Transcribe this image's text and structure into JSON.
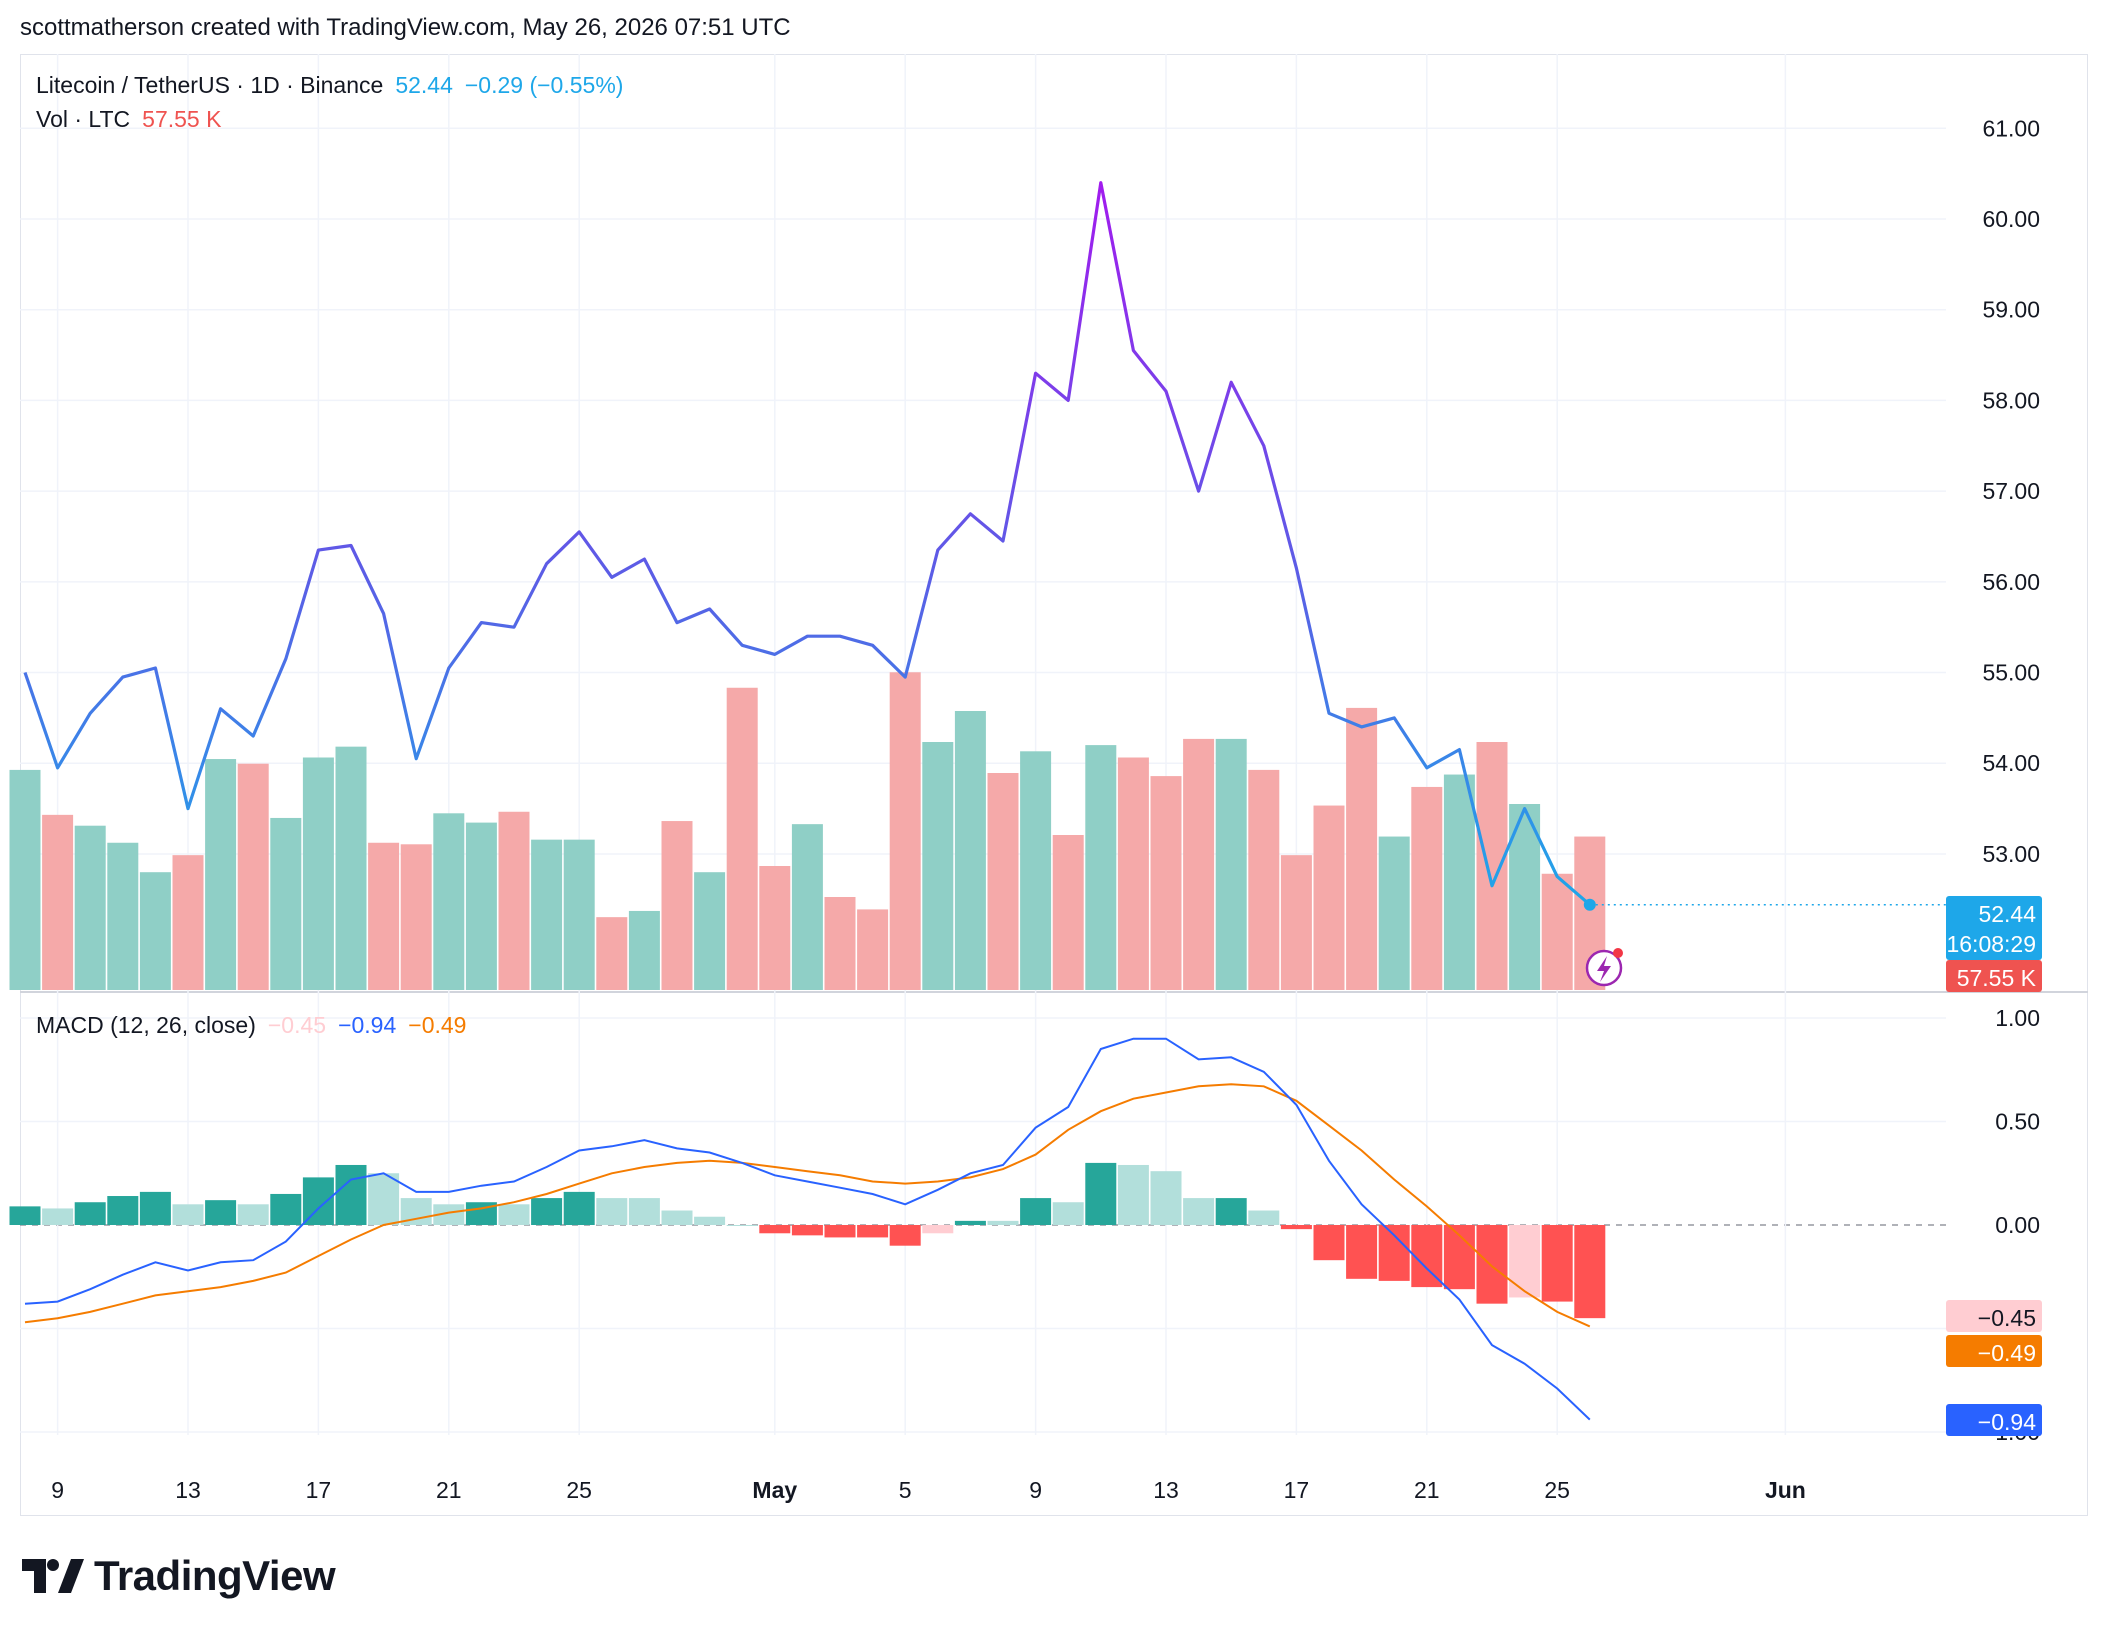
{
  "header": {
    "attribution": "scottmatherson created with TradingView.com, May 26, 2026 07:51 UTC"
  },
  "legend": {
    "symbol": "Litecoin / TetherUS · 1D · Binance",
    "last": "52.44",
    "change": "−0.29 (−0.55%)",
    "vol_label": "Vol · LTC",
    "vol_value": "57.55 K",
    "macd_label": "MACD (12, 26, close)",
    "macd_hist": "−0.45",
    "macd_line": "−0.94",
    "macd_signal": "−0.49"
  },
  "badges": {
    "price": "52.44",
    "countdown": "16:08:29",
    "volume": "57.55 K",
    "hist": "−0.45",
    "signal": "−0.49",
    "macd": "−0.94"
  },
  "colors": {
    "up_volume": "#8fcfc6",
    "down_volume": "#f5a9a9",
    "macd_line": "#2962ff",
    "signal_line": "#f57c00",
    "hist_up_strong": "#26a69a",
    "hist_up_weak": "#b2dfdb",
    "hist_down_strong": "#ff5252",
    "hist_down_weak": "#ffcdd2",
    "price_badge": "#1ea7e9",
    "volume_badge": "#ef5350"
  },
  "chart_data": {
    "type": "line",
    "x_dates": [
      "Apr 8",
      "Apr 9",
      "Apr 10",
      "Apr 11",
      "Apr 12",
      "Apr 13",
      "Apr 14",
      "Apr 15",
      "Apr 16",
      "Apr 17",
      "Apr 18",
      "Apr 19",
      "Apr 20",
      "Apr 21",
      "Apr 22",
      "Apr 23",
      "Apr 24",
      "Apr 25",
      "Apr 26",
      "Apr 27",
      "Apr 28",
      "Apr 29",
      "Apr 30",
      "May 1",
      "May 2",
      "May 3",
      "May 4",
      "May 5",
      "May 6",
      "May 7",
      "May 8",
      "May 9",
      "May 10",
      "May 11",
      "May 12",
      "May 13",
      "May 14",
      "May 15",
      "May 16",
      "May 17",
      "May 18",
      "May 19",
      "May 20",
      "May 21",
      "May 22",
      "May 23",
      "May 24",
      "May 25",
      "May 26"
    ],
    "price": [
      55.0,
      53.95,
      54.55,
      54.95,
      55.05,
      53.5,
      54.6,
      54.3,
      55.15,
      56.35,
      56.4,
      55.65,
      54.05,
      55.05,
      55.55,
      55.5,
      56.2,
      56.55,
      56.05,
      56.25,
      55.55,
      55.7,
      55.3,
      55.2,
      55.4,
      55.4,
      55.3,
      54.95,
      56.35,
      56.75,
      56.45,
      58.3,
      58.0,
      60.4,
      58.55,
      58.1,
      57.0,
      58.2,
      57.5,
      56.15,
      54.55,
      54.4,
      54.5,
      53.95,
      54.15,
      52.65,
      53.5,
      52.75,
      52.44
    ],
    "volume": [
      1.42,
      1.13,
      1.06,
      0.95,
      0.76,
      0.87,
      1.49,
      1.46,
      1.11,
      1.5,
      1.57,
      0.95,
      0.94,
      1.14,
      1.08,
      1.15,
      0.97,
      0.97,
      0.47,
      0.51,
      1.09,
      0.76,
      1.95,
      0.8,
      1.07,
      0.6,
      0.52,
      2.05,
      1.6,
      1.8,
      1.4,
      1.54,
      1.0,
      1.58,
      1.5,
      1.38,
      1.62,
      1.62,
      1.42,
      0.87,
      1.19,
      1.82,
      0.99,
      1.31,
      1.39,
      1.6,
      1.2,
      0.75,
      0.99
    ],
    "volume_up": [
      true,
      false,
      true,
      true,
      true,
      false,
      true,
      false,
      true,
      true,
      true,
      false,
      false,
      true,
      true,
      false,
      true,
      true,
      false,
      true,
      false,
      true,
      false,
      false,
      true,
      false,
      false,
      false,
      true,
      true,
      false,
      true,
      false,
      true,
      false,
      false,
      false,
      true,
      false,
      false,
      false,
      false,
      true,
      false,
      true,
      false,
      true,
      false,
      false
    ],
    "macd": [
      -0.38,
      -0.37,
      -0.31,
      -0.24,
      -0.18,
      -0.22,
      -0.18,
      -0.17,
      -0.08,
      0.08,
      0.22,
      0.25,
      0.16,
      0.16,
      0.19,
      0.21,
      0.28,
      0.36,
      0.38,
      0.41,
      0.37,
      0.35,
      0.3,
      0.24,
      0.21,
      0.18,
      0.15,
      0.1,
      0.17,
      0.25,
      0.29,
      0.47,
      0.57,
      0.85,
      0.9,
      0.9,
      0.8,
      0.81,
      0.74,
      0.58,
      0.31,
      0.1,
      -0.05,
      -0.21,
      -0.36,
      -0.58,
      -0.67,
      -0.79,
      -0.94
    ],
    "signal": [
      -0.47,
      -0.45,
      -0.42,
      -0.38,
      -0.34,
      -0.32,
      -0.3,
      -0.27,
      -0.23,
      -0.15,
      -0.07,
      0.0,
      0.03,
      0.06,
      0.08,
      0.11,
      0.15,
      0.2,
      0.25,
      0.28,
      0.3,
      0.31,
      0.3,
      0.28,
      0.26,
      0.24,
      0.21,
      0.2,
      0.21,
      0.23,
      0.27,
      0.34,
      0.46,
      0.55,
      0.61,
      0.64,
      0.67,
      0.68,
      0.67,
      0.6,
      0.48,
      0.36,
      0.22,
      0.09,
      -0.05,
      -0.2,
      -0.32,
      -0.42,
      -0.49
    ],
    "y_price_ticks": [
      "53.00",
      "54.00",
      "55.00",
      "56.00",
      "57.00",
      "58.00",
      "59.00",
      "60.00",
      "61.00"
    ],
    "y_macd_ticks": [
      "0.50",
      "0.00"
    ],
    "y_macd_ticks_partial": [
      "1.00",
      "−1.00"
    ],
    "x_ticks": [
      "9",
      "13",
      "17",
      "21",
      "25",
      "May",
      "5",
      "9",
      "13",
      "17",
      "21",
      "25",
      "Jun"
    ],
    "ylim_price": [
      51.5,
      61.4
    ],
    "ylim_macd": [
      -1.0,
      1.0
    ],
    "grid": true,
    "legend_position": "top-left"
  },
  "brand": {
    "name": "TradingView"
  }
}
